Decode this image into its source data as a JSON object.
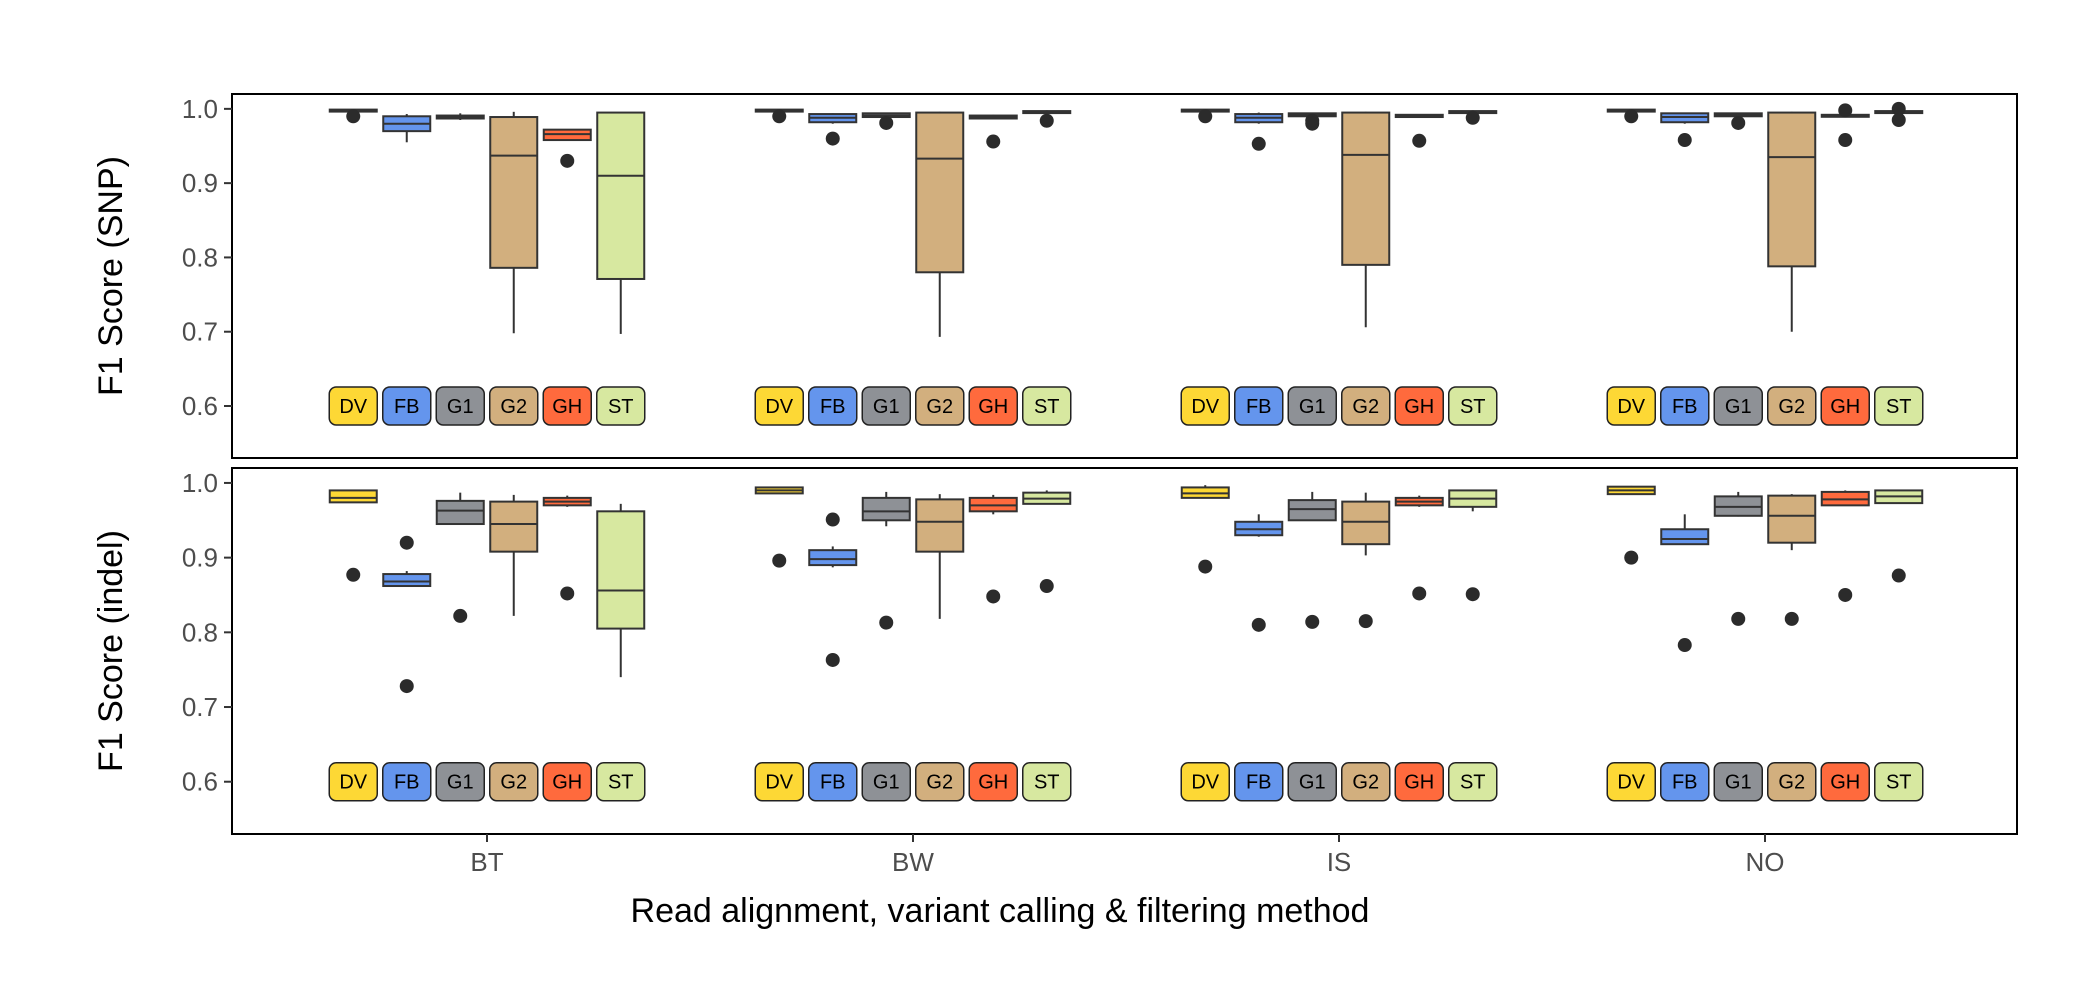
{
  "chart_data": {
    "type": "boxplot",
    "xlabel": "Read alignment, variant calling & filtering method",
    "groups": [
      "BT",
      "BW",
      "IS",
      "NO"
    ],
    "methods": [
      "DV",
      "FB",
      "G1",
      "G2",
      "GH",
      "ST"
    ],
    "method_colors": {
      "DV": "#FDD835",
      "FB": "#6495ED",
      "G1": "#8E9196",
      "G2": "#D2AF7E",
      "GH": "#FF6A3D",
      "ST": "#D7E8A0"
    },
    "grid": false,
    "panels": [
      {
        "ylabel": "F1 Score (SNP)",
        "ylim": [
          0.53,
          1.02
        ],
        "yticks": [
          "0.6",
          "0.7",
          "0.8",
          "0.9",
          "1.0"
        ],
        "boxes": {
          "BT": [
            {
              "method": "DV",
              "min": 0.997,
              "q1": 0.997,
              "median": 0.998,
              "q3": 0.999,
              "max": 0.999,
              "outliers": [
                0.99
              ]
            },
            {
              "method": "FB",
              "min": 0.955,
              "q1": 0.97,
              "median": 0.98,
              "q3": 0.99,
              "max": 0.993,
              "outliers": []
            },
            {
              "method": "G1",
              "min": 0.985,
              "q1": 0.987,
              "median": 0.989,
              "q3": 0.991,
              "max": 0.994,
              "outliers": []
            },
            {
              "method": "G2",
              "min": 0.698,
              "q1": 0.786,
              "median": 0.937,
              "q3": 0.989,
              "max": 0.996,
              "outliers": []
            },
            {
              "method": "GH",
              "min": 0.958,
              "q1": 0.958,
              "median": 0.966,
              "q3": 0.972,
              "max": 0.972,
              "outliers": [
                0.93
              ]
            },
            {
              "method": "ST",
              "min": 0.697,
              "q1": 0.771,
              "median": 0.91,
              "q3": 0.995,
              "max": 0.995,
              "outliers": []
            }
          ],
          "BW": [
            {
              "method": "DV",
              "min": 0.997,
              "q1": 0.997,
              "median": 0.998,
              "q3": 0.999,
              "max": 0.999,
              "outliers": [
                0.99
              ]
            },
            {
              "method": "FB",
              "min": 0.98,
              "q1": 0.982,
              "median": 0.988,
              "q3": 0.993,
              "max": 0.994,
              "outliers": [
                0.96
              ]
            },
            {
              "method": "G1",
              "min": 0.988,
              "q1": 0.989,
              "median": 0.991,
              "q3": 0.994,
              "max": 0.995,
              "outliers": [
                0.981
              ]
            },
            {
              "method": "G2",
              "min": 0.693,
              "q1": 0.78,
              "median": 0.933,
              "q3": 0.995,
              "max": 0.996,
              "outliers": []
            },
            {
              "method": "GH",
              "min": 0.986,
              "q1": 0.987,
              "median": 0.989,
              "q3": 0.991,
              "max": 0.992,
              "outliers": [
                0.956
              ]
            },
            {
              "method": "ST",
              "min": 0.994,
              "q1": 0.995,
              "median": 0.996,
              "q3": 0.997,
              "max": 0.998,
              "outliers": [
                0.984
              ]
            }
          ],
          "IS": [
            {
              "method": "DV",
              "min": 0.997,
              "q1": 0.997,
              "median": 0.998,
              "q3": 0.999,
              "max": 0.999,
              "outliers": [
                0.99
              ]
            },
            {
              "method": "FB",
              "min": 0.98,
              "q1": 0.982,
              "median": 0.988,
              "q3": 0.993,
              "max": 0.995,
              "outliers": [
                0.953
              ]
            },
            {
              "method": "G1",
              "min": 0.988,
              "q1": 0.99,
              "median": 0.992,
              "q3": 0.994,
              "max": 0.995,
              "outliers": [
                0.984,
                0.98
              ]
            },
            {
              "method": "G2",
              "min": 0.706,
              "q1": 0.79,
              "median": 0.938,
              "q3": 0.995,
              "max": 0.996,
              "outliers": []
            },
            {
              "method": "GH",
              "min": 0.988,
              "q1": 0.989,
              "median": 0.99,
              "q3": 0.992,
              "max": 0.993,
              "outliers": [
                0.957
              ]
            },
            {
              "method": "ST",
              "min": 0.995,
              "q1": 0.995,
              "median": 0.996,
              "q3": 0.997,
              "max": 0.998,
              "outliers": [
                0.988
              ]
            }
          ],
          "NO": [
            {
              "method": "DV",
              "min": 0.997,
              "q1": 0.997,
              "median": 0.998,
              "q3": 0.999,
              "max": 0.999,
              "outliers": [
                0.99
              ]
            },
            {
              "method": "FB",
              "min": 0.98,
              "q1": 0.982,
              "median": 0.989,
              "q3": 0.994,
              "max": 0.995,
              "outliers": [
                0.958
              ]
            },
            {
              "method": "G1",
              "min": 0.988,
              "q1": 0.99,
              "median": 0.992,
              "q3": 0.994,
              "max": 0.995,
              "outliers": [
                0.981
              ]
            },
            {
              "method": "G2",
              "min": 0.7,
              "q1": 0.788,
              "median": 0.935,
              "q3": 0.995,
              "max": 0.996,
              "outliers": []
            },
            {
              "method": "GH",
              "min": 0.989,
              "q1": 0.99,
              "median": 0.991,
              "q3": 0.992,
              "max": 0.993,
              "outliers": [
                0.998,
                0.958
              ]
            },
            {
              "method": "ST",
              "min": 0.995,
              "q1": 0.995,
              "median": 0.996,
              "q3": 0.997,
              "max": 0.998,
              "outliers": [
                1.0,
                0.985
              ]
            }
          ]
        }
      },
      {
        "ylabel": "F1 Score (indel)",
        "ylim": [
          0.53,
          1.02
        ],
        "yticks": [
          "0.6",
          "0.7",
          "0.8",
          "0.9",
          "1.0"
        ],
        "boxes": {
          "BT": [
            {
              "method": "DV",
              "min": 0.974,
              "q1": 0.974,
              "median": 0.98,
              "q3": 0.99,
              "max": 0.99,
              "outliers": [
                0.877
              ]
            },
            {
              "method": "FB",
              "min": 0.862,
              "q1": 0.862,
              "median": 0.868,
              "q3": 0.878,
              "max": 0.882,
              "outliers": [
                0.92,
                0.728
              ]
            },
            {
              "method": "G1",
              "min": 0.945,
              "q1": 0.945,
              "median": 0.963,
              "q3": 0.976,
              "max": 0.987,
              "outliers": [
                0.822
              ]
            },
            {
              "method": "G2",
              "min": 0.822,
              "q1": 0.908,
              "median": 0.945,
              "q3": 0.975,
              "max": 0.984,
              "outliers": []
            },
            {
              "method": "GH",
              "min": 0.968,
              "q1": 0.97,
              "median": 0.975,
              "q3": 0.98,
              "max": 0.983,
              "outliers": [
                0.852
              ]
            },
            {
              "method": "ST",
              "min": 0.74,
              "q1": 0.805,
              "median": 0.856,
              "q3": 0.962,
              "max": 0.972,
              "outliers": []
            }
          ],
          "BW": [
            {
              "method": "DV",
              "min": 0.986,
              "q1": 0.986,
              "median": 0.99,
              "q3": 0.994,
              "max": 0.994,
              "outliers": [
                0.896
              ]
            },
            {
              "method": "FB",
              "min": 0.887,
              "q1": 0.89,
              "median": 0.898,
              "q3": 0.91,
              "max": 0.915,
              "outliers": [
                0.951,
                0.763
              ]
            },
            {
              "method": "G1",
              "min": 0.942,
              "q1": 0.95,
              "median": 0.962,
              "q3": 0.98,
              "max": 0.988,
              "outliers": [
                0.813
              ]
            },
            {
              "method": "G2",
              "min": 0.818,
              "q1": 0.908,
              "median": 0.948,
              "q3": 0.978,
              "max": 0.985,
              "outliers": []
            },
            {
              "method": "GH",
              "min": 0.958,
              "q1": 0.962,
              "median": 0.97,
              "q3": 0.98,
              "max": 0.984,
              "outliers": [
                0.848
              ]
            },
            {
              "method": "ST",
              "min": 0.972,
              "q1": 0.972,
              "median": 0.979,
              "q3": 0.987,
              "max": 0.99,
              "outliers": [
                0.862
              ]
            }
          ],
          "IS": [
            {
              "method": "DV",
              "min": 0.98,
              "q1": 0.98,
              "median": 0.986,
              "q3": 0.994,
              "max": 0.997,
              "outliers": [
                0.888
              ]
            },
            {
              "method": "FB",
              "min": 0.928,
              "q1": 0.93,
              "median": 0.938,
              "q3": 0.948,
              "max": 0.958,
              "outliers": [
                0.81
              ]
            },
            {
              "method": "G1",
              "min": 0.95,
              "q1": 0.95,
              "median": 0.965,
              "q3": 0.977,
              "max": 0.988,
              "outliers": [
                0.814
              ]
            },
            {
              "method": "G2",
              "min": 0.903,
              "q1": 0.918,
              "median": 0.948,
              "q3": 0.975,
              "max": 0.987,
              "outliers": [
                0.815
              ]
            },
            {
              "method": "GH",
              "min": 0.968,
              "q1": 0.97,
              "median": 0.975,
              "q3": 0.98,
              "max": 0.983,
              "outliers": [
                0.852
              ]
            },
            {
              "method": "ST",
              "min": 0.962,
              "q1": 0.968,
              "median": 0.979,
              "q3": 0.99,
              "max": 0.99,
              "outliers": [
                0.851
              ]
            }
          ],
          "NO": [
            {
              "method": "DV",
              "min": 0.985,
              "q1": 0.985,
              "median": 0.99,
              "q3": 0.995,
              "max": 0.996,
              "outliers": [
                0.9
              ]
            },
            {
              "method": "FB",
              "min": 0.918,
              "q1": 0.918,
              "median": 0.925,
              "q3": 0.938,
              "max": 0.958,
              "outliers": [
                0.783
              ]
            },
            {
              "method": "G1",
              "min": 0.955,
              "q1": 0.956,
              "median": 0.968,
              "q3": 0.982,
              "max": 0.988,
              "outliers": [
                0.818
              ]
            },
            {
              "method": "G2",
              "min": 0.91,
              "q1": 0.92,
              "median": 0.956,
              "q3": 0.983,
              "max": 0.985,
              "outliers": [
                0.818
              ]
            },
            {
              "method": "GH",
              "min": 0.97,
              "q1": 0.97,
              "median": 0.978,
              "q3": 0.988,
              "max": 0.99,
              "outliers": [
                0.85
              ]
            },
            {
              "method": "ST",
              "min": 0.973,
              "q1": 0.973,
              "median": 0.982,
              "q3": 0.99,
              "max": 0.99,
              "outliers": [
                0.876
              ]
            }
          ]
        }
      }
    ]
  }
}
